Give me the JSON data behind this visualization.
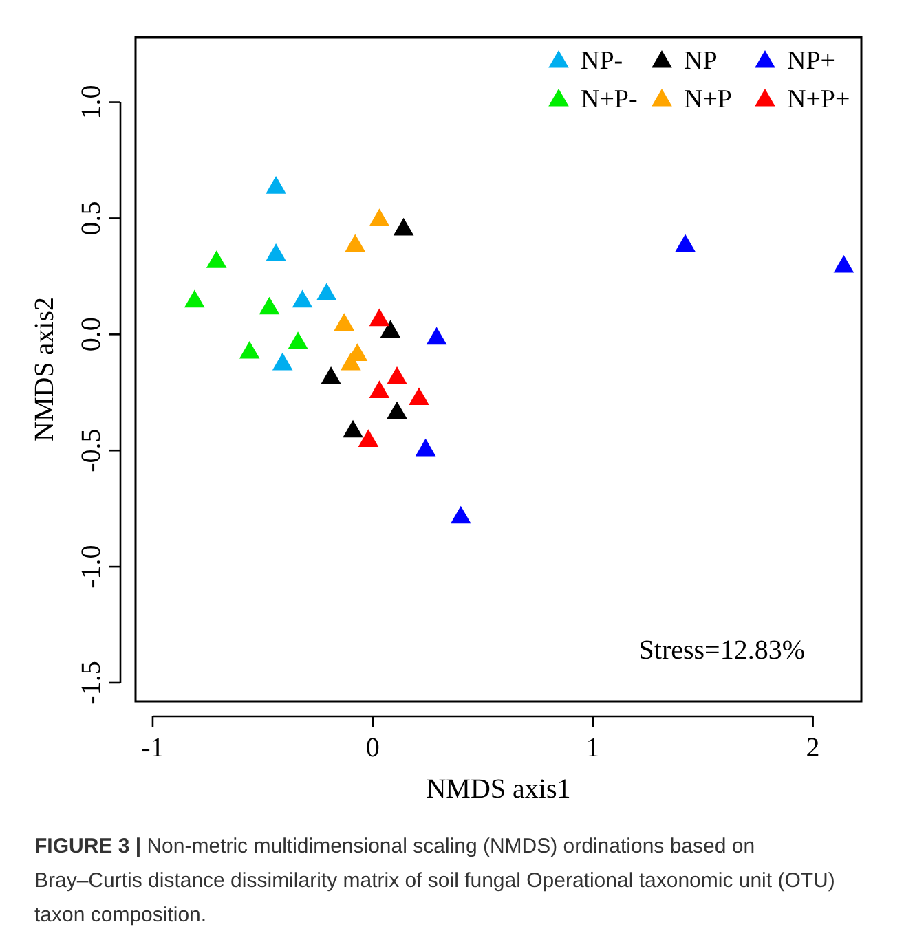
{
  "chart_data": {
    "type": "scatter",
    "xlabel": "NMDS axis1",
    "ylabel": "NMDS axis2",
    "xlim": [
      -1.078,
      2.22
    ],
    "ylim": [
      -1.58,
      1.28
    ],
    "xticks": [
      -1,
      0,
      1,
      2
    ],
    "yticks": [
      {
        "value": -1.5,
        "label": "-1.5"
      },
      {
        "value": -1,
        "label": "-1.0"
      },
      {
        "value": -0.5,
        "label": "-0.5"
      },
      {
        "value": 0,
        "label": "0.0"
      },
      {
        "value": 0.5,
        "label": "0.5"
      },
      {
        "value": 1,
        "label": "1.0"
      }
    ],
    "marker": "triangle",
    "legend": "top right",
    "grid": false,
    "series": [
      {
        "name": "NP-",
        "color": "#00aeef",
        "x": [
          -0.44,
          -0.44,
          -0.32,
          -0.21,
          -0.41
        ],
        "values": [
          0.64,
          0.35,
          0.15,
          0.18,
          -0.12
        ]
      },
      {
        "name": "NP",
        "color": "#000000",
        "x": [
          0.14,
          0.08,
          -0.19,
          0.11,
          -0.09
        ],
        "values": [
          0.46,
          0.02,
          -0.18,
          -0.33,
          -0.41
        ]
      },
      {
        "name": "NP+",
        "color": "#0000ff",
        "x": [
          0.29,
          0.24,
          0.4,
          1.42,
          2.14
        ],
        "values": [
          -0.01,
          -0.49,
          -0.78,
          0.39,
          0.3
        ]
      },
      {
        "name": "N+P-",
        "color": "#00ee00",
        "x": [
          -0.71,
          -0.81,
          -0.47,
          -0.34,
          -0.56
        ],
        "values": [
          0.32,
          0.15,
          0.12,
          -0.03,
          -0.07
        ]
      },
      {
        "name": "N+P",
        "color": "#ffa500",
        "x": [
          0.03,
          -0.08,
          -0.13,
          -0.07,
          -0.1
        ],
        "values": [
          0.5,
          0.39,
          0.05,
          -0.08,
          -0.12
        ]
      },
      {
        "name": "N+P+",
        "color": "#ff0000",
        "x": [
          0.03,
          0.11,
          0.03,
          0.21,
          -0.02
        ],
        "values": [
          0.07,
          -0.18,
          -0.24,
          -0.27,
          -0.45
        ]
      }
    ],
    "annotations": [
      "Stress=12.83%",
      "FIGURE 3 | Non-metric multidimensional scaling (NMDS) ordinations based on Bray–Curtis distance dissimilarity matrix of soil fungal Operational taxonomic unit (OTU) taxon composition."
    ]
  }
}
